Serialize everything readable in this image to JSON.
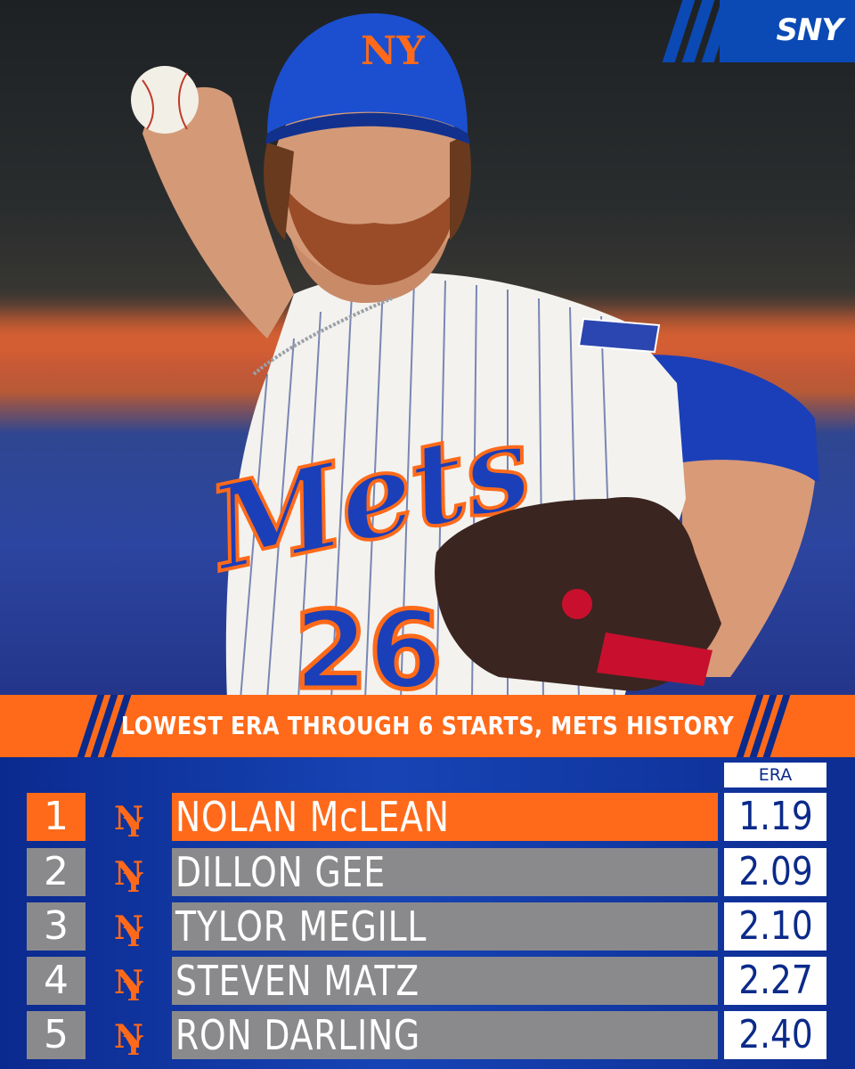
{
  "brand": {
    "logo_text": "SNY"
  },
  "colors": {
    "orange": "#ff6a1a",
    "blue": "#0b2a8a",
    "gray": "#8a8a8c",
    "white": "#ffffff"
  },
  "title": "LOWEST ERA THROUGH 6 STARTS, METS HISTORY",
  "era_header": "ERA",
  "rows": [
    {
      "rank": "1",
      "name": "NOLAN McLEAN",
      "era": "1.19"
    },
    {
      "rank": "2",
      "name": "DILLON GEE",
      "era": "2.09"
    },
    {
      "rank": "3",
      "name": "TYLOR MEGILL",
      "era": "2.10"
    },
    {
      "rank": "4",
      "name": "STEVEN MATZ",
      "era": "2.27"
    },
    {
      "rank": "5",
      "name": "RON DARLING",
      "era": "2.40"
    }
  ],
  "photo": {
    "jersey_text": "Mets",
    "jersey_number": "26",
    "cap_logo": "NY"
  },
  "icons": [
    "mets-ny-logo-icon"
  ]
}
